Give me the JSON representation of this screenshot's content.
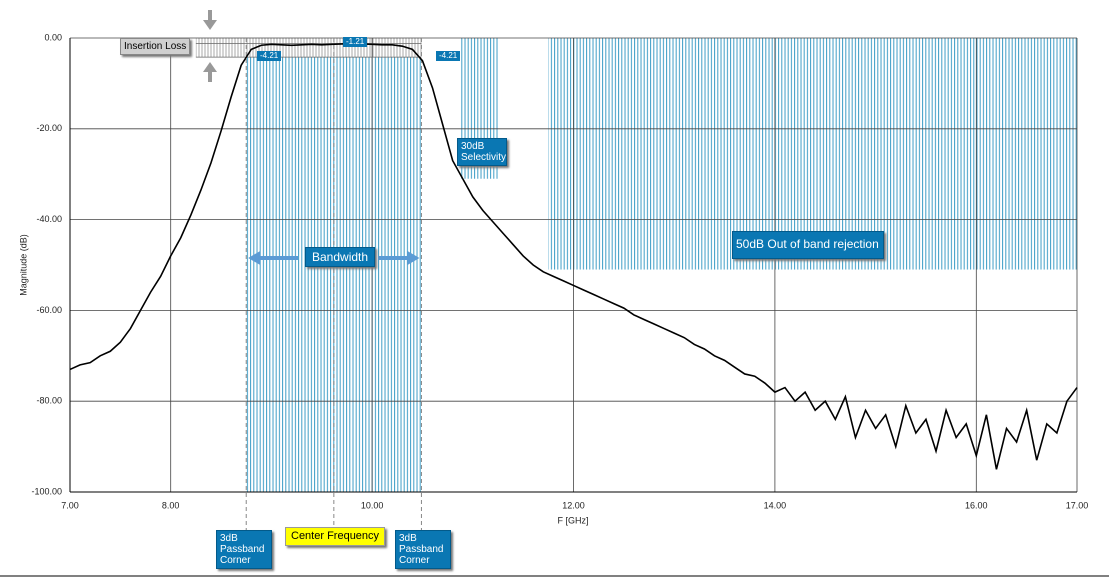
{
  "chart_data": {
    "type": "line",
    "y_label": "Magnitude (dB)",
    "x_label": "F [GHz]",
    "x": [
      7.0,
      7.1,
      7.2,
      7.3,
      7.4,
      7.5,
      7.6,
      7.7,
      7.8,
      7.9,
      8.0,
      8.1,
      8.2,
      8.3,
      8.4,
      8.5,
      8.6,
      8.7,
      8.8,
      8.9,
      9.0,
      9.1,
      9.2,
      9.3,
      9.4,
      9.5,
      9.6,
      9.7,
      9.8,
      9.9,
      10.0,
      10.1,
      10.2,
      10.3,
      10.4,
      10.5,
      10.6,
      10.7,
      10.8,
      10.9,
      11.0,
      11.1,
      11.2,
      11.3,
      11.4,
      11.5,
      11.6,
      11.7,
      11.8,
      11.9,
      12.0,
      12.1,
      12.2,
      12.3,
      12.4,
      12.5,
      12.6,
      12.7,
      12.8,
      12.9,
      13.0,
      13.1,
      13.2,
      13.3,
      13.4,
      13.5,
      13.6,
      13.7,
      13.8,
      13.9,
      14.0,
      14.1,
      14.2,
      14.3,
      14.4,
      14.5,
      14.6,
      14.7,
      14.8,
      14.9,
      15.0,
      15.1,
      15.2,
      15.3,
      15.4,
      15.5,
      15.6,
      15.7,
      15.8,
      15.9,
      16.0,
      16.1,
      16.2,
      16.3,
      16.4,
      16.5,
      16.6,
      16.7,
      16.8,
      16.9,
      17.0
    ],
    "series": [
      {
        "color": "#000000",
        "values": [
          -73,
          -72,
          -71.5,
          -70,
          -69,
          -67,
          -64,
          -60,
          -56,
          -52.5,
          -48,
          -44,
          -39,
          -33.5,
          -27.5,
          -20.5,
          -13,
          -6,
          -2.5,
          -1.6,
          -1.4,
          -1.5,
          -1.6,
          -1.5,
          -1.4,
          -1.5,
          -1.4,
          -1.3,
          -1.2,
          -1.3,
          -1.4,
          -1.5,
          -1.5,
          -1.8,
          -2.5,
          -5,
          -11,
          -19,
          -27,
          -31,
          -35,
          -38,
          -40.5,
          -43,
          -45.5,
          -48,
          -50,
          -51.5,
          -52.5,
          -53.5,
          -54.5,
          -55.5,
          -56.5,
          -57.5,
          -58.5,
          -59.5,
          -61,
          -62,
          -63,
          -64,
          -65,
          -66,
          -67.5,
          -68.5,
          -70,
          -71,
          -72.5,
          -74,
          -74.5,
          -76,
          -78,
          -77,
          -80,
          -78,
          -82,
          -80,
          -84,
          -79,
          -88,
          -82,
          -86,
          -83,
          -90,
          -81,
          -87,
          -84,
          -91,
          -82,
          -88,
          -85,
          -92,
          -83,
          -95,
          -86,
          -89,
          -82,
          -93,
          -85,
          -87,
          -80,
          -77
        ]
      }
    ],
    "xlim": [
      7,
      17
    ],
    "xticks": [
      {
        "value": 7,
        "label": "7.00"
      },
      {
        "value": 8,
        "label": "8.00"
      },
      {
        "value": 10,
        "label": "10.00"
      },
      {
        "value": 12,
        "label": "12.00"
      },
      {
        "value": 14,
        "label": "14.00"
      },
      {
        "value": 16,
        "label": "16.00"
      },
      {
        "value": 17,
        "label": "17.00"
      }
    ],
    "ylim": [
      -100,
      0
    ],
    "yticks": [
      {
        "value": 0,
        "label": "0.00"
      },
      {
        "value": -20,
        "label": "-20.00"
      },
      {
        "value": -40,
        "label": "-40.00"
      },
      {
        "value": -60,
        "label": "-60.00"
      },
      {
        "value": -80,
        "label": "-80.00"
      },
      {
        "value": -100,
        "label": "-100.00"
      }
    ],
    "grid": true,
    "insertion_loss": {
      "label": "Insertion Loss",
      "x": [
        8.25,
        10.49
      ],
      "y": [
        0,
        -4.21
      ],
      "levels": [
        -1.21,
        -4.21
      ]
    },
    "bandwidth": {
      "label": "Bandwidth",
      "x": [
        8.75,
        10.49
      ]
    },
    "passband_corner_label": "3dB Passband Corner",
    "center_frequency": {
      "label": "Center Frequency",
      "x": 9.62
    },
    "selectivity": {
      "label": "30dB Selectivity",
      "x": [
        10.87,
        11.25
      ],
      "y": [
        0,
        -31
      ]
    },
    "rejection": {
      "label": "50dB Out of band rejection",
      "x": [
        11.75,
        17
      ],
      "y": [
        0,
        -51
      ]
    }
  }
}
